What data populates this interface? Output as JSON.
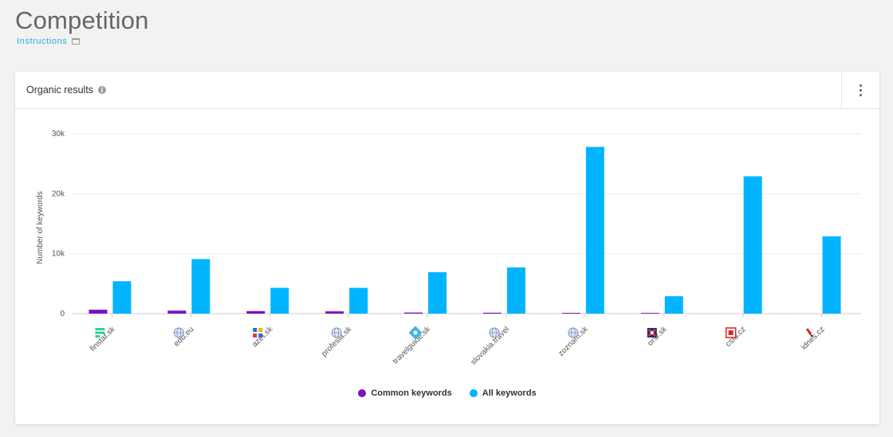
{
  "page": {
    "title": "Competition",
    "instructions_label": "Instructions"
  },
  "card": {
    "title": "Organic results"
  },
  "colors": {
    "common": "#7b10c9",
    "all": "#00b4ff",
    "grid": "#ebebeb",
    "axis": "#cccccc"
  },
  "chart_data": {
    "type": "bar",
    "ylabel": "Number of keywords",
    "ylim": [
      0,
      30000
    ],
    "yticks": [
      {
        "value": 0,
        "label": "0"
      },
      {
        "value": 10000,
        "label": "10k"
      },
      {
        "value": 20000,
        "label": "20k"
      },
      {
        "value": 30000,
        "label": "30k"
      }
    ],
    "grid": true,
    "legend_position": "bottom",
    "categories": [
      "finstat.sk",
      "edb.eu",
      "azet.sk",
      "profesia.sk",
      "travelguide.sk",
      "slovakia.travel",
      "zoznam.sk",
      "orsr.sk",
      "csfd.cz",
      "idnes.cz"
    ],
    "category_icons": [
      "finstat-logo-icon",
      "globe-icon",
      "azet-logo-icon",
      "globe-icon",
      "travelguide-logo-icon",
      "globe-icon",
      "globe-icon",
      "orsr-logo-icon",
      "csfd-logo-icon",
      "idnes-logo-icon"
    ],
    "series": [
      {
        "name": "Common keywords",
        "color": "#7b10c9",
        "values": [
          650,
          500,
          420,
          380,
          180,
          150,
          130,
          120,
          0,
          0
        ]
      },
      {
        "name": "All keywords",
        "color": "#00b4ff",
        "values": [
          5400,
          9100,
          4300,
          4300,
          6900,
          7700,
          27800,
          2900,
          22900,
          12900
        ]
      }
    ]
  }
}
